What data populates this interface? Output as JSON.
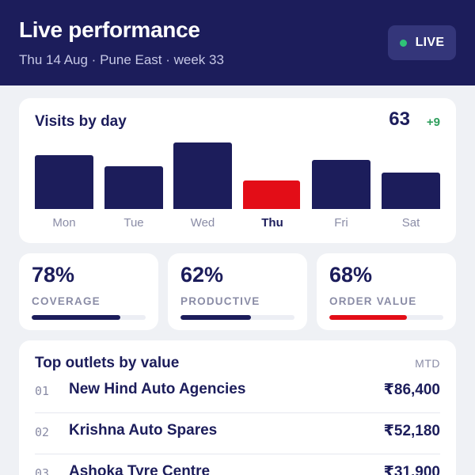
{
  "header": {
    "title": "Live performance",
    "subtitle": "Thu 14 Aug · Pune East · week 33",
    "live_label": "LIVE",
    "live_dot_color": "#2fc277"
  },
  "visits": {
    "title": "Visits by day",
    "total": "63",
    "delta": "+9",
    "chart_data": {
      "type": "bar",
      "categories": [
        "Mon",
        "Tue",
        "Wed",
        "Thu",
        "Fri",
        "Sat"
      ],
      "values": [
        68,
        54,
        84,
        36,
        62,
        46
      ],
      "highlight": "Thu",
      "bar_color": "#1c1d5b",
      "highlight_color": "#e30d17",
      "ylim": [
        0,
        84
      ]
    }
  },
  "kpis": [
    {
      "value": "78%",
      "label": "COVERAGE",
      "fill_percent": 78,
      "color": "navy"
    },
    {
      "value": "62%",
      "label": "PRODUCTIVE",
      "fill_percent": 62,
      "color": "navy"
    },
    {
      "value": "68%",
      "label": "ORDER VALUE",
      "fill_percent": 68,
      "color": "red"
    }
  ],
  "outlets": {
    "title": "Top outlets by value",
    "period": "MTD",
    "rows": [
      {
        "rank": "01",
        "name": "New Hind Auto Agencies",
        "value": "₹86,400"
      },
      {
        "rank": "02",
        "name": "Krishna Auto Spares",
        "value": "₹52,180"
      },
      {
        "rank": "03",
        "name": "Ashoka Tyre Centre",
        "value": "₹31,900"
      }
    ]
  }
}
